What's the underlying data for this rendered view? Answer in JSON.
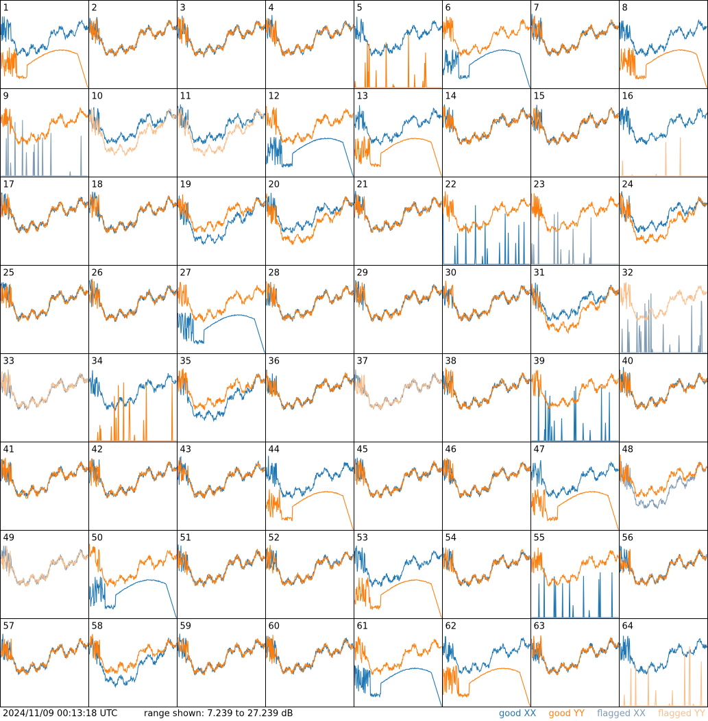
{
  "footer": {
    "timestamp": "2024/11/09 00:13:18 UTC",
    "range_text": "range shown: 7.239 to 27.239 dB"
  },
  "legend": [
    {
      "label": "good XX",
      "color": "#1f77b4"
    },
    {
      "label": "good YY",
      "color": "#ff7f0e"
    },
    {
      "label": "flagged XX",
      "color": "#7f9bb3"
    },
    {
      "label": "flagged YY",
      "color": "#fbbf8c"
    }
  ],
  "colors": {
    "good_xx": "#1f77b4",
    "good_yy": "#ff7f0e",
    "flagged_xx": "#7f9bb3",
    "flagged_yy": "#fbbf8c"
  },
  "chart_data": {
    "type": "line",
    "layout": "8x8 small multiples",
    "ylim": [
      7.239,
      27.239
    ],
    "yunit": "dB",
    "grid": false,
    "legend_placement": "bottom-right",
    "panels": [
      {
        "id": "1",
        "xx": "normal",
        "yy": "dip"
      },
      {
        "id": "2",
        "xx": "normal",
        "yy": "normal"
      },
      {
        "id": "3",
        "xx": "normal",
        "yy": "normal"
      },
      {
        "id": "4",
        "xx": "normal",
        "yy": "normal"
      },
      {
        "id": "5",
        "xx": "normal",
        "yy": "dead"
      },
      {
        "id": "6",
        "xx": "dip",
        "yy": "normal"
      },
      {
        "id": "7",
        "xx": "normal",
        "yy": "normal"
      },
      {
        "id": "8",
        "xx": "normal",
        "yy": "dip"
      },
      {
        "id": "9",
        "xx": "dead",
        "yy": "normal",
        "flagged_xx": true
      },
      {
        "id": "10",
        "xx": "normal",
        "yy": "low",
        "flagged_yy": true
      },
      {
        "id": "11",
        "xx": "normal",
        "yy": "low",
        "flagged_yy": true
      },
      {
        "id": "12",
        "xx": "dip",
        "yy": "normal"
      },
      {
        "id": "13",
        "xx": "normal",
        "yy": "dip"
      },
      {
        "id": "14",
        "xx": "normal",
        "yy": "normal"
      },
      {
        "id": "15",
        "xx": "normal",
        "yy": "normal"
      },
      {
        "id": "16",
        "xx": "normal",
        "yy": "dead",
        "flagged_yy": true
      },
      {
        "id": "17",
        "xx": "normal",
        "yy": "normal"
      },
      {
        "id": "18",
        "xx": "normal",
        "yy": "normal"
      },
      {
        "id": "19",
        "xx": "low",
        "yy": "normal"
      },
      {
        "id": "20",
        "xx": "normal",
        "yy": "low"
      },
      {
        "id": "21",
        "xx": "normal",
        "yy": "normal"
      },
      {
        "id": "22",
        "xx": "dead",
        "yy": "normal"
      },
      {
        "id": "23",
        "xx": "dead",
        "yy": "normal",
        "flagged_xx": true
      },
      {
        "id": "24",
        "xx": "normal",
        "yy": "low"
      },
      {
        "id": "25",
        "xx": "normal",
        "yy": "normal"
      },
      {
        "id": "26",
        "xx": "normal",
        "yy": "normal"
      },
      {
        "id": "27",
        "xx": "dip",
        "yy": "normal"
      },
      {
        "id": "28",
        "xx": "normal",
        "yy": "normal"
      },
      {
        "id": "29",
        "xx": "normal",
        "yy": "normal"
      },
      {
        "id": "30",
        "xx": "normal",
        "yy": "normal"
      },
      {
        "id": "31",
        "xx": "normal",
        "yy": "low"
      },
      {
        "id": "32",
        "xx": "dead",
        "yy": "normal",
        "flagged_xx": true,
        "flagged_yy": true
      },
      {
        "id": "33",
        "xx": "normal",
        "yy": "normal",
        "flagged_xx": true,
        "flagged_yy": true
      },
      {
        "id": "34",
        "xx": "normal",
        "yy": "dead"
      },
      {
        "id": "35",
        "xx": "low",
        "yy": "normal"
      },
      {
        "id": "36",
        "xx": "normal",
        "yy": "normal"
      },
      {
        "id": "37",
        "xx": "normal",
        "yy": "normal",
        "flagged_xx": true,
        "flagged_yy": true
      },
      {
        "id": "38",
        "xx": "normal",
        "yy": "normal"
      },
      {
        "id": "39",
        "xx": "dead",
        "yy": "normal"
      },
      {
        "id": "40",
        "xx": "normal",
        "yy": "normal"
      },
      {
        "id": "41",
        "xx": "normal",
        "yy": "normal"
      },
      {
        "id": "42",
        "xx": "normal",
        "yy": "normal"
      },
      {
        "id": "43",
        "xx": "normal",
        "yy": "normal"
      },
      {
        "id": "44",
        "xx": "normal",
        "yy": "dip"
      },
      {
        "id": "45",
        "xx": "normal",
        "yy": "normal"
      },
      {
        "id": "46",
        "xx": "normal",
        "yy": "normal"
      },
      {
        "id": "47",
        "xx": "normal",
        "yy": "dip"
      },
      {
        "id": "48",
        "xx": "low",
        "yy": "normal",
        "flagged_xx": true
      },
      {
        "id": "49",
        "xx": "normal",
        "yy": "normal",
        "flagged_xx": true,
        "flagged_yy": true
      },
      {
        "id": "50",
        "xx": "dip",
        "yy": "normal"
      },
      {
        "id": "51",
        "xx": "normal",
        "yy": "normal"
      },
      {
        "id": "52",
        "xx": "normal",
        "yy": "normal"
      },
      {
        "id": "53",
        "xx": "normal",
        "yy": "dip"
      },
      {
        "id": "54",
        "xx": "normal",
        "yy": "normal"
      },
      {
        "id": "55",
        "xx": "dead",
        "yy": "normal"
      },
      {
        "id": "56",
        "xx": "normal",
        "yy": "normal"
      },
      {
        "id": "57",
        "xx": "normal",
        "yy": "normal"
      },
      {
        "id": "58",
        "xx": "low",
        "yy": "normal"
      },
      {
        "id": "59",
        "xx": "normal",
        "yy": "normal"
      },
      {
        "id": "60",
        "xx": "normal",
        "yy": "normal"
      },
      {
        "id": "61",
        "xx": "dip",
        "yy": "normal"
      },
      {
        "id": "62",
        "xx": "normal",
        "yy": "dip"
      },
      {
        "id": "63",
        "xx": "normal",
        "yy": "normal"
      },
      {
        "id": "64",
        "xx": "normal",
        "yy": "dead",
        "flagged_yy": true
      }
    ]
  }
}
